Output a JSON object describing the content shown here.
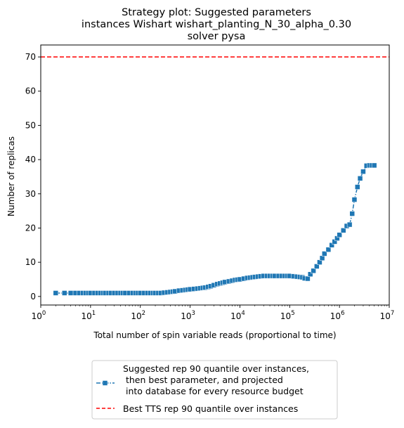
{
  "chart_data": {
    "type": "line",
    "title_lines": [
      "Strategy plot: Suggested parameters",
      "instances Wishart wishart_planting_N_30_alpha_0.30",
      "solver pysa"
    ],
    "xlabel": "Total number of spin variable reads (proportional to time)",
    "ylabel": "Number of replicas",
    "xscale": "log",
    "xlim": [
      1,
      10000000
    ],
    "ylim": [
      -2.5,
      73.5
    ],
    "x_ticks": [
      {
        "value": 1,
        "base": "10",
        "exp": "0"
      },
      {
        "value": 10,
        "base": "10",
        "exp": "1"
      },
      {
        "value": 100,
        "base": "10",
        "exp": "2"
      },
      {
        "value": 1000,
        "base": "10",
        "exp": "3"
      },
      {
        "value": 10000,
        "base": "10",
        "exp": "4"
      },
      {
        "value": 100000,
        "base": "10",
        "exp": "5"
      },
      {
        "value": 1000000,
        "base": "10",
        "exp": "6"
      },
      {
        "value": 10000000,
        "base": "10",
        "exp": "7"
      }
    ],
    "y_ticks": [
      {
        "value": 0,
        "label": "0"
      },
      {
        "value": 10,
        "label": "10"
      },
      {
        "value": 20,
        "label": "20"
      },
      {
        "value": 30,
        "label": "30"
      },
      {
        "value": 40,
        "label": "40"
      },
      {
        "value": 50,
        "label": "50"
      },
      {
        "value": 60,
        "label": "60"
      },
      {
        "value": 70,
        "label": "70"
      }
    ],
    "grid": false,
    "legend_position": "below",
    "series": [
      {
        "name": "Suggested rep 90 quantile over instances,\n then best parameter, and projected\n into database for every resource budget",
        "color": "#1f77b4",
        "marker": "square",
        "linestyle": "dashdot",
        "x": [
          2,
          3,
          4,
          5,
          6,
          7,
          8,
          9,
          10,
          12,
          14,
          16,
          18,
          20,
          23,
          26,
          30,
          35,
          40,
          45,
          50,
          60,
          70,
          80,
          90,
          100,
          120,
          140,
          160,
          180,
          200,
          230,
          260,
          300,
          350,
          400,
          450,
          500,
          600,
          700,
          800,
          900,
          1000,
          1200,
          1400,
          1600,
          1800,
          2000,
          2300,
          2600,
          3000,
          3500,
          4000,
          4500,
          5000,
          6000,
          7000,
          8000,
          9000,
          10000,
          12000,
          14000,
          16000,
          18000,
          20000,
          23000,
          26000,
          30000,
          35000,
          40000,
          45000,
          50000,
          60000,
          70000,
          80000,
          90000,
          100000,
          120000,
          140000,
          160000,
          180000,
          200000,
          230000,
          260000,
          300000,
          350000,
          400000,
          450000,
          500000,
          600000,
          700000,
          800000,
          900000,
          1000000,
          1200000,
          1400000,
          1600000,
          1800000,
          2000000,
          2300000,
          2600000,
          3000000,
          3500000,
          4000000,
          4500000,
          5000000
        ],
        "y": [
          1.0,
          1.0,
          1.0,
          1.0,
          1.0,
          1.0,
          1.0,
          1.0,
          1.0,
          1.0,
          1.0,
          1.0,
          1.0,
          1.0,
          1.0,
          1.0,
          1.0,
          1.0,
          1.0,
          1.0,
          1.0,
          1.0,
          1.0,
          1.0,
          1.0,
          1.0,
          1.0,
          1.0,
          1.0,
          1.0,
          1.0,
          1.0,
          1.0,
          1.1,
          1.2,
          1.3,
          1.4,
          1.5,
          1.7,
          1.8,
          1.9,
          2.0,
          2.1,
          2.2,
          2.3,
          2.4,
          2.5,
          2.6,
          2.8,
          3.0,
          3.3,
          3.6,
          3.8,
          4.0,
          4.2,
          4.4,
          4.6,
          4.8,
          4.9,
          5.0,
          5.2,
          5.4,
          5.5,
          5.6,
          5.7,
          5.8,
          5.9,
          6.0,
          6.0,
          6.0,
          6.0,
          6.0,
          6.0,
          6.0,
          6.0,
          6.0,
          6.0,
          5.9,
          5.8,
          5.7,
          5.6,
          5.3,
          5.2,
          6.5,
          7.5,
          8.8,
          10.0,
          11.2,
          12.5,
          13.7,
          15.0,
          16.0,
          17.0,
          18.0,
          19.3,
          20.6,
          21.0,
          24.2,
          28.3,
          32.0,
          34.5,
          36.5,
          38.2,
          38.3,
          38.3,
          38.3
        ]
      },
      {
        "name": "Best TTS rep 90 quantile over instances",
        "color": "#ff0000",
        "linestyle": "dashed",
        "hline_value": 70
      }
    ]
  }
}
